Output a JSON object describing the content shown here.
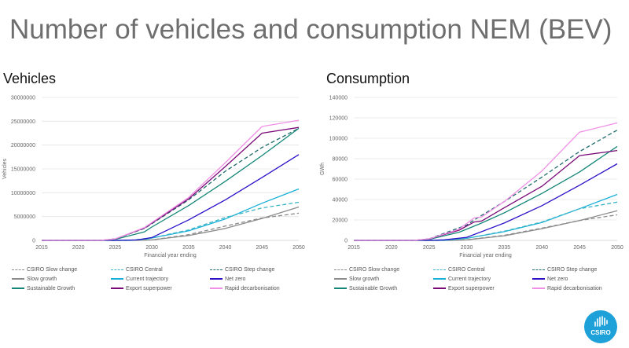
{
  "title": "Number of vehicles and consumption NEM (BEV)",
  "logo": {
    "text": "CSIRO",
    "color": "#1ea1d8"
  },
  "legend": [
    {
      "name": "CSIRO Slow change",
      "color": "#8a8a8a",
      "dash": true
    },
    {
      "name": "CSIRO Central",
      "color": "#3ab4c6",
      "dash": true
    },
    {
      "name": "CSIRO Step change",
      "color": "#1f6b6b",
      "dash": true
    },
    {
      "name": "Slow growth",
      "color": "#8c8c8c",
      "dash": false
    },
    {
      "name": "Current trajectory",
      "color": "#18b0d8",
      "dash": false
    },
    {
      "name": "Net zero",
      "color": "#2b12c8",
      "dash": false
    },
    {
      "name": "Sustainable Growth",
      "color": "#138678",
      "dash": false
    },
    {
      "name": "Export superpower",
      "color": "#7a0a78",
      "dash": false
    },
    {
      "name": "Rapid decarbonisation",
      "color": "#f08fe6",
      "dash": false
    }
  ],
  "chart_data": [
    {
      "type": "line",
      "title": "Vehicles",
      "xlabel": "Financial year ending",
      "ylabel": "Vehicles",
      "xticks": [
        "2015",
        "2020",
        "2025",
        "2030",
        "2035",
        "2040",
        "2045",
        "2050"
      ],
      "xlim": [
        2015,
        2050
      ],
      "yticks": [
        "0",
        "5000000",
        "10000000",
        "15000000",
        "20000000",
        "25000000",
        "30000000"
      ],
      "ylim": [
        0,
        30000000
      ],
      "grid": true,
      "legend": "bottom",
      "series": [
        {
          "name": "CSIRO Slow change",
          "x": [
            2015,
            2027,
            2030,
            2035,
            2040,
            2045,
            2050
          ],
          "y": [
            0,
            0,
            100000,
            1200000,
            3000000,
            4700000,
            5700000
          ]
        },
        {
          "name": "CSIRO Central",
          "x": [
            2015,
            2027,
            2030,
            2035,
            2040,
            2045,
            2050
          ],
          "y": [
            0,
            0,
            500000,
            2200000,
            4800000,
            6800000,
            8000000
          ]
        },
        {
          "name": "CSIRO Step change",
          "x": [
            2015,
            2023,
            2025,
            2029,
            2035,
            2040,
            2045,
            2050
          ],
          "y": [
            0,
            0,
            300000,
            2500000,
            8500000,
            14500000,
            19500000,
            23500000
          ]
        },
        {
          "name": "Slow growth",
          "x": [
            2015,
            2028,
            2030,
            2035,
            2040,
            2045,
            2050
          ],
          "y": [
            0,
            0,
            100000,
            1000000,
            2500000,
            4600000,
            7000000
          ]
        },
        {
          "name": "Current trajectory",
          "x": [
            2015,
            2027,
            2029,
            2030,
            2035,
            2040,
            2045,
            2050
          ],
          "y": [
            0,
            0,
            200000,
            500000,
            2000000,
            4500000,
            7800000,
            10800000
          ]
        },
        {
          "name": "Net zero",
          "x": [
            2015,
            2025,
            2028,
            2030,
            2035,
            2040,
            2045,
            2050
          ],
          "y": [
            0,
            0,
            100000,
            600000,
            4300000,
            8500000,
            13200000,
            18000000
          ]
        },
        {
          "name": "Sustainable Growth",
          "x": [
            2015,
            2023,
            2025,
            2029,
            2030,
            2035,
            2040,
            2045,
            2050
          ],
          "y": [
            0,
            0,
            200000,
            1800000,
            2800000,
            7300000,
            12400000,
            17800000,
            23500000
          ]
        },
        {
          "name": "Export superpower",
          "x": [
            2015,
            2023,
            2025,
            2029,
            2035,
            2040,
            2045,
            2050
          ],
          "y": [
            0,
            0,
            300000,
            2600000,
            8700000,
            15500000,
            22500000,
            23700000
          ]
        },
        {
          "name": "Rapid decarbonisation",
          "x": [
            2015,
            2023,
            2025,
            2029,
            2035,
            2040,
            2045,
            2050
          ],
          "y": [
            0,
            0,
            300000,
            2700000,
            9000000,
            16300000,
            23900000,
            25200000
          ]
        }
      ]
    },
    {
      "type": "line",
      "title": "Consumption",
      "xlabel": "Financial year ending",
      "ylabel": "GWh",
      "xticks": [
        "2015",
        "2020",
        "2025",
        "2030",
        "2035",
        "2040",
        "2045",
        "2050"
      ],
      "xlim": [
        2015,
        2050
      ],
      "yticks": [
        "0",
        "20000",
        "40000",
        "60000",
        "80000",
        "100000",
        "120000",
        "140000"
      ],
      "ylim": [
        0,
        140000
      ],
      "grid": true,
      "legend": "bottom",
      "series": [
        {
          "name": "CSIRO Slow change",
          "x": [
            2015,
            2028,
            2030,
            2035,
            2040,
            2045,
            2050
          ],
          "y": [
            0,
            0,
            500,
            5000,
            12000,
            19500,
            25000
          ]
        },
        {
          "name": "CSIRO Central",
          "x": [
            2015,
            2027,
            2030,
            2035,
            2040,
            2045,
            2050
          ],
          "y": [
            0,
            0,
            2000,
            9000,
            18000,
            31000,
            37500
          ]
        },
        {
          "name": "CSIRO Step change",
          "x": [
            2015,
            2023,
            2025,
            2030,
            2031,
            2035,
            2040,
            2045,
            2050
          ],
          "y": [
            0,
            0,
            1500,
            15000,
            20000,
            38000,
            62000,
            87000,
            108000
          ]
        },
        {
          "name": "Slow growth",
          "x": [
            2015,
            2028,
            2030,
            2035,
            2040,
            2045,
            2050
          ],
          "y": [
            0,
            0,
            500,
            4500,
            11500,
            19500,
            29000
          ]
        },
        {
          "name": "Current trajectory",
          "x": [
            2015,
            2027,
            2030,
            2035,
            2040,
            2045,
            2050
          ],
          "y": [
            0,
            0,
            2000,
            8500,
            17500,
            31000,
            45000
          ]
        },
        {
          "name": "Net zero",
          "x": [
            2015,
            2025,
            2027,
            2030,
            2035,
            2040,
            2045,
            2050
          ],
          "y": [
            0,
            0,
            500,
            3000,
            17000,
            34000,
            54000,
            75000
          ]
        },
        {
          "name": "Sustainable Growth",
          "x": [
            2015,
            2023,
            2025,
            2029,
            2032,
            2035,
            2040,
            2045,
            2050
          ],
          "y": [
            0,
            0,
            1000,
            8000,
            17000,
            27000,
            46000,
            67000,
            92000
          ]
        },
        {
          "name": "Export superpower",
          "x": [
            2015,
            2023,
            2025,
            2029,
            2031,
            2032,
            2035,
            2040,
            2045,
            2050
          ],
          "y": [
            0,
            0,
            1500,
            10000,
            18000,
            19000,
            32000,
            53000,
            83000,
            88000
          ]
        },
        {
          "name": "Rapid decarbonisation",
          "x": [
            2015,
            2023,
            2025,
            2029,
            2031,
            2032,
            2035,
            2040,
            2045,
            2050
          ],
          "y": [
            0,
            0,
            1500,
            11000,
            22000,
            23000,
            38000,
            68000,
            106000,
            115000
          ]
        }
      ]
    }
  ]
}
